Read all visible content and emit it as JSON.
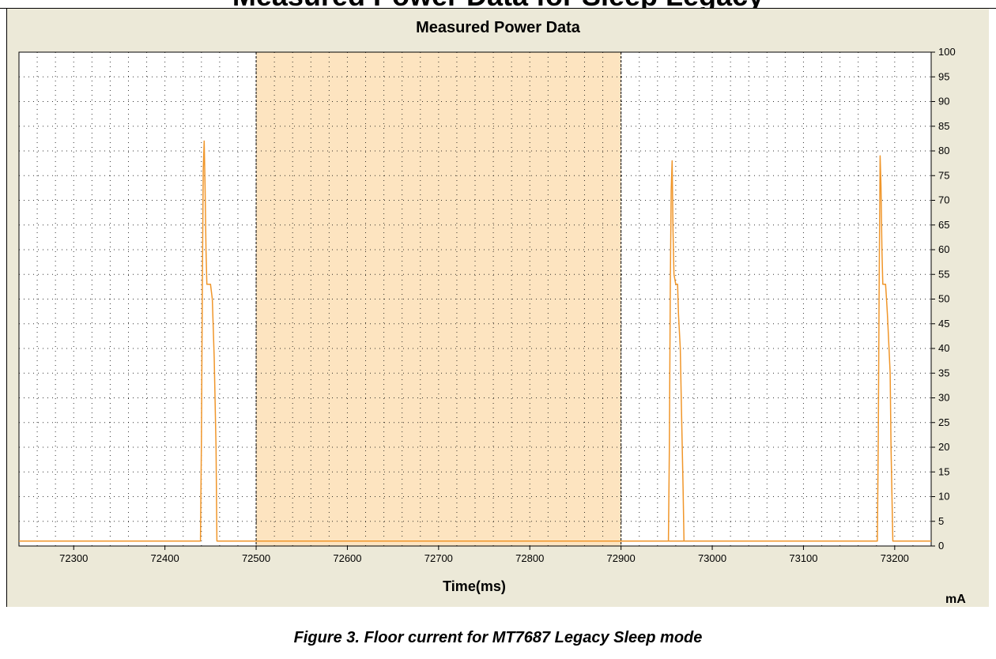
{
  "page": {
    "top_heading": "Measured Power Data for Sleep Legacy",
    "caption": "Figure 3. Floor current for MT7687 Legacy Sleep mode"
  },
  "chart_data": {
    "type": "line",
    "title": "Measured Power Data",
    "xlabel": "Time(ms)",
    "ylabel": "mA",
    "xlim": [
      72240,
      73240
    ],
    "ylim": [
      0,
      100
    ],
    "x_ticks": [
      72300,
      72400,
      72500,
      72600,
      72700,
      72800,
      72900,
      73000,
      73100,
      73200
    ],
    "y_ticks": [
      0,
      5,
      10,
      15,
      20,
      25,
      30,
      35,
      40,
      45,
      50,
      55,
      60,
      65,
      70,
      75,
      80,
      85,
      90,
      95,
      100
    ],
    "grid": true,
    "highlight_region": [
      72500,
      72900
    ],
    "colors": {
      "series": "#f0962a",
      "highlight": "#fde4c0",
      "plot_bg": "#ffffff",
      "panel_bg": "#ece9d8",
      "grid": "#000000"
    },
    "series": [
      {
        "x": [
          72240,
          72439,
          72440,
          72441,
          72442,
          72443,
          72444,
          72445,
          72446,
          72447,
          72450,
          72452,
          72453,
          72454,
          72456,
          72457,
          73000,
          72952,
          72953,
          72954,
          72955,
          72956,
          72957,
          72958,
          72960,
          72961,
          72962,
          72963,
          72965,
          72966,
          72968,
          72969,
          72970,
          73181,
          73182,
          73183,
          73184,
          73185,
          73186,
          73187,
          73190,
          73191,
          73192,
          73193,
          73195,
          73196,
          73197,
          73198,
          73240
        ],
        "y": [
          1,
          1,
          21,
          53,
          76,
          82,
          73,
          60,
          53,
          53,
          53,
          50,
          44,
          38,
          20,
          1,
          1,
          1,
          20,
          53,
          72,
          78,
          64,
          55,
          53,
          53,
          53,
          47,
          40,
          30,
          12,
          1,
          1,
          1,
          22,
          53,
          79,
          73,
          60,
          53,
          53,
          50,
          47,
          43,
          35,
          20,
          10,
          1,
          1
        ]
      }
    ]
  }
}
